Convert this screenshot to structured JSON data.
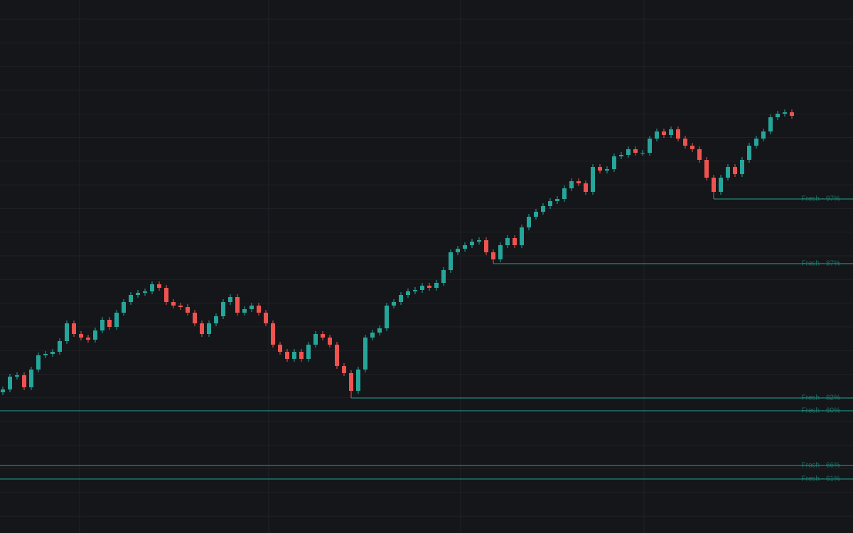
{
  "chart_data": {
    "type": "candlestick",
    "ylim": [
      0,
      750
    ],
    "up_color": "#26a69a",
    "down_color": "#ef5350",
    "level_color": "#1f8a7e",
    "open": [
      198,
      202,
      220,
      222,
      205,
      230,
      250,
      252,
      255,
      270,
      295,
      280,
      275,
      272,
      285,
      300,
      290,
      310,
      325,
      335,
      338,
      340,
      350,
      345,
      325,
      320,
      318,
      310,
      295,
      280,
      295,
      305,
      325,
      332,
      310,
      315,
      320,
      310,
      295,
      265,
      255,
      245,
      255,
      245,
      265,
      280,
      275,
      265,
      235,
      225,
      200,
      230,
      275,
      282,
      288,
      320,
      325,
      335,
      340,
      342,
      348,
      345,
      352,
      370,
      395,
      400,
      405,
      410,
      412,
      395,
      385,
      405,
      415,
      405,
      430,
      445,
      452,
      460,
      467,
      470,
      485,
      495,
      492,
      480,
      515,
      510,
      512,
      530,
      532,
      540,
      535,
      535,
      555,
      565,
      560,
      568,
      555,
      545,
      540,
      525,
      500,
      480,
      500,
      515,
      505,
      525,
      545,
      555,
      565,
      585,
      590,
      592
    ],
    "high": [
      206,
      224,
      226,
      226,
      234,
      254,
      256,
      259,
      274,
      299,
      299,
      284,
      279,
      289,
      304,
      304,
      314,
      329,
      339,
      342,
      344,
      354,
      354,
      349,
      329,
      324,
      322,
      314,
      299,
      299,
      309,
      329,
      336,
      336,
      319,
      324,
      324,
      314,
      299,
      269,
      259,
      259,
      259,
      269,
      284,
      284,
      279,
      269,
      239,
      229,
      234,
      279,
      286,
      292,
      324,
      329,
      339,
      344,
      346,
      352,
      352,
      356,
      374,
      399,
      404,
      409,
      414,
      416,
      416,
      399,
      409,
      419,
      419,
      434,
      449,
      456,
      464,
      471,
      474,
      489,
      499,
      499,
      496,
      519,
      519,
      516,
      534,
      536,
      544,
      544,
      539,
      559,
      569,
      569,
      572,
      572,
      559,
      549,
      544,
      529,
      504,
      504,
      519,
      519,
      529,
      549,
      559,
      569,
      589,
      594,
      596,
      596
    ],
    "low": [
      194,
      198,
      216,
      201,
      201,
      226,
      246,
      248,
      251,
      266,
      276,
      271,
      268,
      268,
      281,
      286,
      286,
      306,
      321,
      331,
      334,
      336,
      341,
      321,
      316,
      314,
      306,
      291,
      276,
      276,
      291,
      301,
      321,
      306,
      306,
      311,
      306,
      291,
      261,
      251,
      241,
      241,
      241,
      241,
      261,
      271,
      261,
      231,
      221,
      190,
      196,
      226,
      271,
      278,
      284,
      316,
      321,
      331,
      336,
      338,
      341,
      341,
      348,
      366,
      391,
      396,
      401,
      406,
      391,
      379,
      381,
      401,
      401,
      401,
      426,
      441,
      448,
      456,
      463,
      466,
      481,
      488,
      476,
      476,
      506,
      506,
      508,
      526,
      528,
      531,
      531,
      531,
      551,
      556,
      556,
      551,
      541,
      536,
      521,
      496,
      470,
      476,
      496,
      501,
      501,
      521,
      541,
      551,
      561,
      581,
      586,
      583
    ],
    "close": [
      202,
      220,
      222,
      205,
      230,
      250,
      252,
      255,
      270,
      295,
      280,
      275,
      272,
      285,
      300,
      290,
      310,
      325,
      335,
      338,
      340,
      350,
      345,
      325,
      320,
      318,
      310,
      295,
      280,
      295,
      305,
      325,
      332,
      310,
      315,
      320,
      310,
      295,
      265,
      255,
      245,
      255,
      245,
      265,
      280,
      275,
      265,
      235,
      225,
      200,
      230,
      275,
      282,
      288,
      320,
      325,
      335,
      340,
      342,
      348,
      345,
      352,
      370,
      395,
      400,
      405,
      410,
      412,
      395,
      385,
      405,
      415,
      405,
      430,
      445,
      452,
      460,
      467,
      470,
      485,
      495,
      492,
      480,
      515,
      510,
      512,
      530,
      532,
      540,
      535,
      535,
      555,
      565,
      560,
      568,
      555,
      545,
      540,
      525,
      500,
      480,
      500,
      515,
      505,
      525,
      545,
      555,
      565,
      585,
      590,
      592,
      587
    ],
    "levels": [
      {
        "price": 470,
        "label": "Fresh - 97%"
      },
      {
        "price": 379,
        "label": "Fresh - 87%"
      },
      {
        "price": 190,
        "label": "Fresh - 82%"
      },
      {
        "price": 172,
        "label": "Fresh - 60%"
      },
      {
        "price": 95,
        "label": "Fresh - 66%"
      },
      {
        "price": 76,
        "label": "Fresh - 61%"
      }
    ]
  }
}
